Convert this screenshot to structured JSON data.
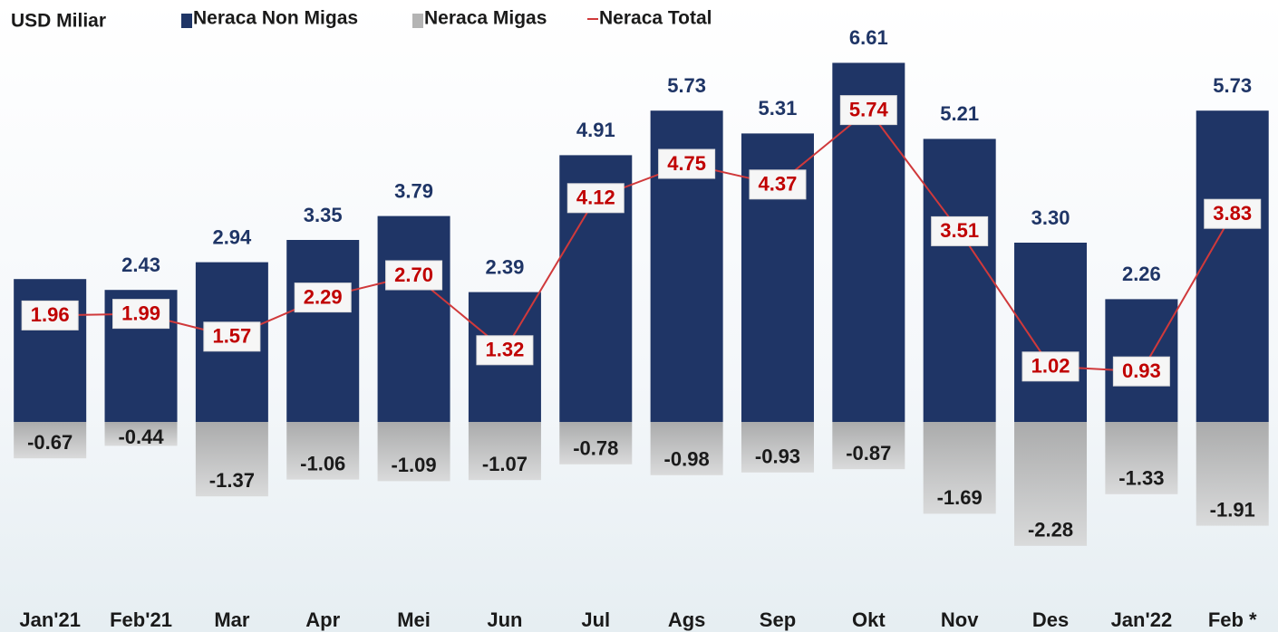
{
  "chart_data": {
    "type": "bar_line",
    "unit_label": "USD Miliar",
    "categories": [
      "Jan'21",
      "Feb'21",
      "Mar",
      "Apr",
      "Mei",
      "Jun",
      "Jul",
      "Ags",
      "Sep",
      "Okt",
      "Nov",
      "Des",
      "Jan'22",
      "Feb *"
    ],
    "ylim": [
      -3.5,
      7.5
    ],
    "series": [
      {
        "name": "Neraca Non Migas",
        "color": "#1f3566",
        "kind": "bar",
        "values": [
          2.63,
          2.43,
          2.94,
          3.35,
          3.79,
          2.39,
          4.91,
          5.73,
          5.31,
          6.61,
          5.21,
          3.3,
          2.26,
          5.73
        ],
        "value_labels": [
          null,
          "2.43",
          "2.94",
          "3.35",
          "3.79",
          "2.39",
          "4.91",
          "5.73",
          "5.31",
          "6.61",
          "5.21",
          "3.30",
          "2.26",
          "5.73"
        ]
      },
      {
        "name": "Neraca Migas",
        "color": "#b4b4b4",
        "kind": "bar",
        "values": [
          -0.67,
          -0.44,
          -1.37,
          -1.06,
          -1.09,
          -1.07,
          -0.78,
          -0.98,
          -0.93,
          -0.87,
          -1.69,
          -2.28,
          -1.33,
          -1.91
        ],
        "value_labels": [
          "-0.67",
          "-0.44",
          "-1.37",
          "-1.06",
          "-1.09",
          "-1.07",
          "-0.78",
          "-0.98",
          "-0.93",
          "-0.87",
          "-1.69",
          "-2.28",
          "-1.33",
          "-1.91"
        ]
      },
      {
        "name": "Neraca Total",
        "color": "#d0393b",
        "kind": "line",
        "values": [
          1.96,
          1.99,
          1.57,
          2.29,
          2.7,
          1.32,
          4.12,
          4.75,
          4.37,
          5.74,
          3.51,
          1.02,
          0.93,
          3.83
        ],
        "value_labels": [
          "1.96",
          "1.99",
          "1.57",
          "2.29",
          "2.70",
          "1.32",
          "4.12",
          "4.75",
          "4.37",
          "5.74",
          "3.51",
          "1.02",
          "0.93",
          "3.83"
        ]
      }
    ]
  }
}
